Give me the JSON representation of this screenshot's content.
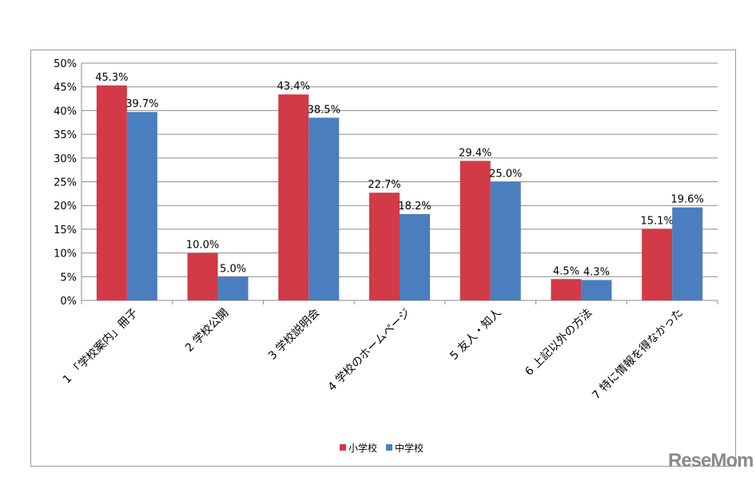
{
  "chart_data": {
    "type": "bar",
    "categories": [
      "1 「学校案内」冊子",
      "2 学校公開",
      "3 学校説明会",
      "4 学校のホームページ",
      "5 友人・知人",
      "6 上記以外の方法",
      "7 特に情報を得なかった"
    ],
    "series": [
      {
        "name": "小学校",
        "color": "#d13a46",
        "values": [
          45.3,
          10.0,
          43.4,
          22.7,
          29.4,
          4.5,
          15.1
        ],
        "labels": [
          "45.3%",
          "10.0%",
          "43.4%",
          "22.7%",
          "29.4%",
          "4.5%",
          "15.1%"
        ]
      },
      {
        "name": "中学校",
        "color": "#4a7ebf",
        "values": [
          39.7,
          5.0,
          38.5,
          18.2,
          25.0,
          4.3,
          19.6
        ],
        "labels": [
          "39.7%",
          "5.0%",
          "38.5%",
          "18.2%",
          "25.0%",
          "4.3%",
          "19.6%"
        ]
      }
    ],
    "ylim": [
      0,
      50
    ],
    "yticks": [
      "0%",
      "5%",
      "10%",
      "15%",
      "20%",
      "25%",
      "30%",
      "35%",
      "40%",
      "45%",
      "50%"
    ],
    "grid": true,
    "legend": "bottom"
  },
  "watermark": "ReseMom"
}
